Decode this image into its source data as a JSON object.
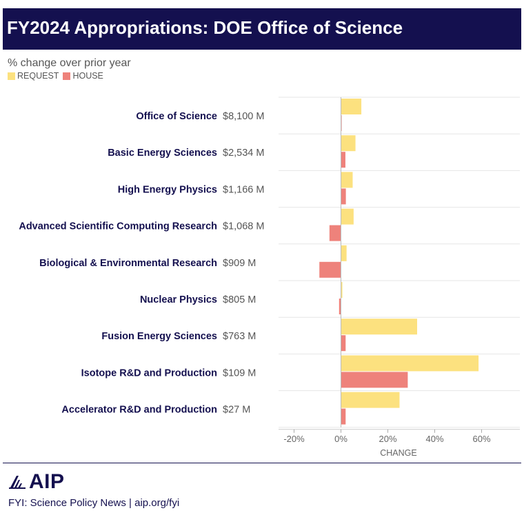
{
  "header": {
    "title": "FY2024 Appropriations: DOE Office of Science",
    "subtitle": "% change over prior year"
  },
  "legend": [
    {
      "label": "REQUEST",
      "color": "#fce17f"
    },
    {
      "label": "HOUSE",
      "color": "#ee827b"
    }
  ],
  "chart_data": {
    "type": "bar",
    "orientation": "horizontal",
    "title": "FY2024 Appropriations: DOE Office of Science",
    "subtitle": "% change over prior year",
    "xlabel": "CHANGE",
    "xlim": [
      -25,
      76
    ],
    "xticks": [
      -20,
      0,
      20,
      40,
      60
    ],
    "xtick_labels": [
      "-20%",
      "0%",
      "20%",
      "40%",
      "60%"
    ],
    "categories": [
      "Office of Science",
      "Basic Energy Sciences",
      "High Energy Physics",
      "Advanced Scientific Computing Research",
      "Biological & Environmental Research",
      "Nuclear Physics",
      "Fusion Energy Sciences",
      "Isotope R&D and Production",
      "Accelerator R&D and Production"
    ],
    "amounts": [
      "$8,100 M",
      "$2,534 M",
      "$1,166 M",
      "$1,068 M",
      "$909 M",
      "$805 M",
      "$763 M",
      "$109 M",
      "$27 M"
    ],
    "series": [
      {
        "name": "REQUEST",
        "color": "#fce17f",
        "values": [
          8.7,
          6.2,
          5.0,
          5.4,
          2.4,
          0.6,
          32.5,
          58.7,
          25.0
        ]
      },
      {
        "name": "HOUSE",
        "color": "#ee827b",
        "values": [
          0.1,
          1.9,
          2.1,
          -4.9,
          -9.2,
          -0.8,
          2.0,
          28.5,
          2.0
        ]
      }
    ],
    "grid": "horizontal",
    "legend_position": "top-left"
  },
  "footer": {
    "logo_text": "AIP",
    "source": "FYI: Science Policy News | aip.org/fyi"
  }
}
